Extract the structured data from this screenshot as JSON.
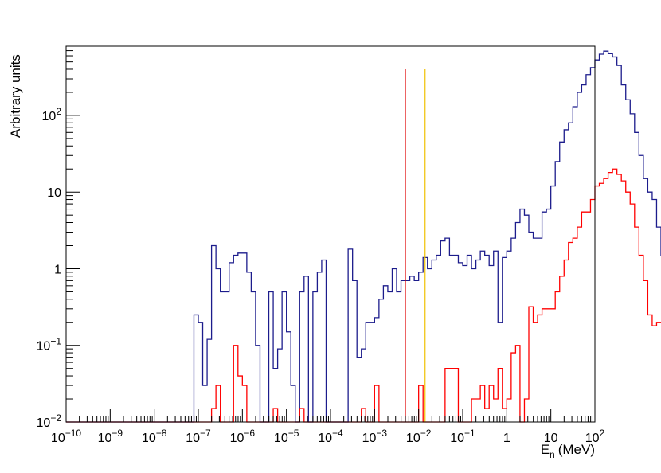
{
  "chart_data": {
    "type": "line",
    "title": "",
    "xlabel": "E",
    "xlabel_sub": "n",
    "xlabel_units": "(MeV)",
    "ylabel": "Arbitrary units",
    "xscale": "log",
    "yscale": "log",
    "xlim": [
      1e-10,
      100
    ],
    "ylim": [
      0.01,
      800
    ],
    "grid": false,
    "x_tick_labels": [
      {
        "base": "10",
        "exp": "−10",
        "value": 1e-10
      },
      {
        "base": "10",
        "exp": "−9",
        "value": 1e-09
      },
      {
        "base": "10",
        "exp": "−8",
        "value": 1e-08
      },
      {
        "base": "10",
        "exp": "−7",
        "value": 1e-07
      },
      {
        "base": "10",
        "exp": "−6",
        "value": 1e-06
      },
      {
        "base": "10",
        "exp": "−5",
        "value": 1e-05
      },
      {
        "base": "10",
        "exp": "−4",
        "value": 0.0001
      },
      {
        "base": "10",
        "exp": "−3",
        "value": 0.001
      },
      {
        "base": "10",
        "exp": "−2",
        "value": 0.01
      },
      {
        "base": "10",
        "exp": "−1",
        "value": 0.1
      },
      {
        "base": "1",
        "exp": "",
        "value": 1
      },
      {
        "base": "10",
        "exp": "",
        "value": 10
      },
      {
        "base": "10",
        "exp": "2",
        "value": 100
      }
    ],
    "y_tick_labels": [
      {
        "base": "10",
        "exp": "−2",
        "value": 0.01
      },
      {
        "base": "10",
        "exp": "−1",
        "value": 0.1
      },
      {
        "base": "1",
        "exp": "",
        "value": 1
      },
      {
        "base": "10",
        "exp": "",
        "value": 10
      },
      {
        "base": "10",
        "exp": "2",
        "value": 100
      }
    ],
    "bins_per_decade": 10,
    "x_start": 1e-10,
    "series": [
      {
        "color": "#1c1c8c",
        "values": [
          0,
          0,
          0,
          0,
          0,
          0,
          0,
          0,
          0,
          0,
          0,
          0,
          0,
          0,
          0,
          0,
          0,
          0,
          0,
          0,
          0,
          0,
          0,
          0,
          0,
          0,
          0,
          0,
          0,
          0.25,
          0.2,
          0.03,
          0.12,
          2.0,
          1.0,
          0.5,
          0.5,
          1.2,
          1.5,
          1.6,
          1.6,
          0.9,
          0.5,
          0.1,
          0.01,
          0.01,
          0.5,
          0.05,
          0.09,
          0.5,
          0.15,
          0.03,
          0.01,
          0.5,
          0.8,
          0.01,
          0.5,
          0.9,
          1.3,
          0.01,
          0.01,
          0.01,
          0.01,
          0.01,
          1.8,
          0.7,
          0.07,
          0.09,
          0.2,
          0.2,
          0.23,
          0.4,
          0.6,
          0.5,
          1.0,
          0.5,
          0.7,
          0.7,
          0.8,
          0.7,
          0.9,
          1.4,
          1.0,
          1.3,
          1.5,
          2.3,
          2.5,
          1.5,
          1.5,
          1.2,
          1.1,
          1.5,
          1.0,
          1.3,
          1.7,
          1.5,
          1.1,
          1.7,
          0.2,
          1.4,
          1.7,
          2.5,
          4.0,
          6.0,
          5.0,
          3.0,
          2.5,
          2.5,
          5.5,
          6.0,
          12,
          25,
          45,
          65,
          80,
          130,
          200,
          250,
          340,
          420,
          530,
          630,
          690,
          640,
          580,
          450,
          250,
          160,
          105,
          60,
          30,
          15,
          10,
          8,
          3.5,
          1.5,
          7.5,
          4.5,
          2.0,
          0.8,
          3.5,
          2.2,
          0.7,
          0.1,
          0.013,
          0,
          0,
          0,
          0,
          0
        ]
      },
      {
        "color": "#ff0000",
        "values": [
          0,
          0,
          0,
          0,
          0,
          0,
          0,
          0,
          0,
          0,
          0,
          0,
          0,
          0,
          0,
          0,
          0,
          0,
          0,
          0,
          0,
          0,
          0,
          0,
          0,
          0,
          0,
          0,
          0,
          0,
          0,
          0,
          0,
          0.015,
          0.03,
          0.01,
          0.01,
          0.01,
          0.1,
          0.04,
          0.03,
          0.01,
          0.01,
          0.01,
          0.01,
          0.01,
          0.01,
          0.015,
          0.01,
          0.01,
          0.01,
          0.01,
          0.01,
          0.015,
          0.01,
          0.01,
          0.01,
          0.01,
          0.01,
          0.01,
          0.01,
          0.01,
          0.01,
          0.01,
          0.01,
          0.01,
          0.01,
          0.015,
          0.01,
          0.01,
          0.03,
          0.01,
          0.01,
          0.01,
          0.01,
          0.01,
          0.01,
          0.01,
          0.01,
          0.01,
          0.03,
          0.01,
          0.01,
          0.01,
          0.01,
          0.01,
          0.05,
          0.05,
          0.05,
          0.01,
          0.01,
          0.01,
          0.02,
          0.02,
          0.03,
          0.015,
          0.03,
          0.02,
          0.05,
          0.015,
          0.02,
          0.08,
          0.1,
          0.01,
          0.02,
          0.32,
          0.2,
          0.25,
          0.3,
          0.3,
          0.3,
          0.5,
          0.8,
          1.3,
          2.2,
          2.5,
          3.5,
          5.5,
          5.5,
          8.0,
          12,
          13,
          15,
          18,
          20,
          17,
          14,
          10,
          7.0,
          3.5,
          1.5,
          0.7,
          0.25,
          0.18,
          0.2,
          0.2,
          0.17,
          0.12,
          0.2,
          0.15,
          0.06,
          0.04,
          0.03,
          0.013,
          0.04,
          0.06,
          0,
          0,
          0,
          0
        ]
      }
    ],
    "vertical_lines": [
      {
        "color": "#e00000",
        "x": 0.005,
        "y_top": 400
      },
      {
        "color": "#f0c000",
        "x": 0.014,
        "y_top": 400
      }
    ]
  }
}
